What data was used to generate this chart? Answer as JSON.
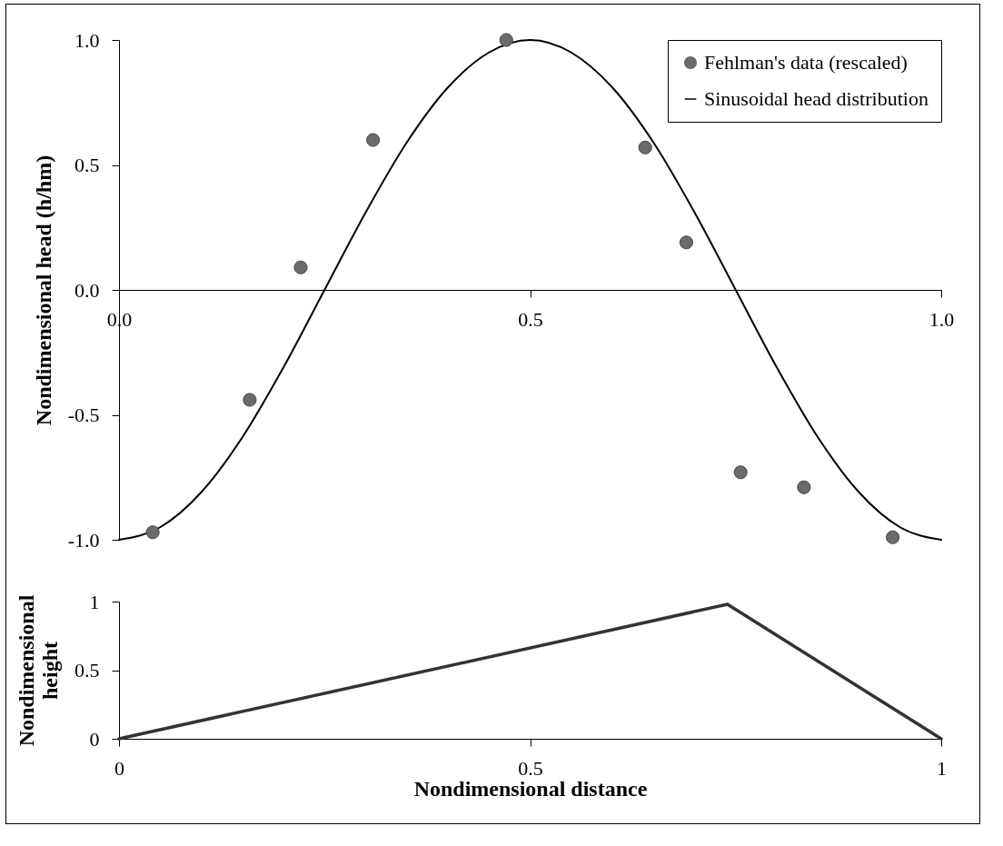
{
  "chart_data": [
    {
      "type": "scatter",
      "ylabel": "Nondimensional head (h/hm)",
      "legend": "top right",
      "xlim": [
        0,
        1
      ],
      "xticks": [
        {
          "value": 0,
          "label": "0.0"
        },
        0.5,
        {
          "value": 1,
          "label": "1.0"
        }
      ],
      "ylim": [
        -1,
        1
      ],
      "yticks": [
        {
          "value": -1,
          "label": "-1.0"
        },
        -0.5,
        {
          "value": 0,
          "label": "0.0"
        },
        0.5,
        {
          "value": 1,
          "label": "1.0"
        }
      ],
      "series": [
        {
          "name": "Fehlman's data (rescaled)",
          "marker": "circle",
          "color": "#6b6b6b",
          "x": [
            0.041,
            0.159,
            0.221,
            0.309,
            0.471,
            0.64,
            0.69,
            0.756,
            0.833,
            0.941
          ],
          "values": [
            -0.97,
            -0.44,
            0.09,
            0.6,
            1.0,
            0.57,
            0.19,
            -0.73,
            -0.79,
            -0.99
          ]
        },
        {
          "name": "Sinusoidal head distribution",
          "type": "line",
          "color": "#000000",
          "x": [
            0,
            0.05,
            0.1,
            0.15,
            0.2,
            0.25,
            0.3,
            0.35,
            0.4,
            0.45,
            0.5,
            0.55,
            0.6,
            0.65,
            0.7,
            0.75,
            0.8,
            0.85,
            0.9,
            0.95,
            1
          ],
          "values": [
            -1,
            -0.95,
            -0.81,
            -0.59,
            -0.31,
            0,
            0.31,
            0.59,
            0.81,
            0.95,
            1,
            0.95,
            0.81,
            0.59,
            0.31,
            0,
            -0.31,
            -0.59,
            -0.81,
            -0.95,
            -1
          ]
        }
      ]
    },
    {
      "type": "line",
      "xlabel": "Nondimensional distance",
      "ylabel": "Nondimensional height",
      "xlim": [
        0,
        1
      ],
      "xticks": [
        0,
        0.5,
        1
      ],
      "ylim": [
        0,
        1
      ],
      "yticks": [
        0,
        0.5,
        1
      ],
      "series": [
        {
          "color": "#333333",
          "x": [
            0,
            0.74,
            1
          ],
          "values": [
            0,
            0.98,
            0
          ]
        }
      ]
    }
  ]
}
